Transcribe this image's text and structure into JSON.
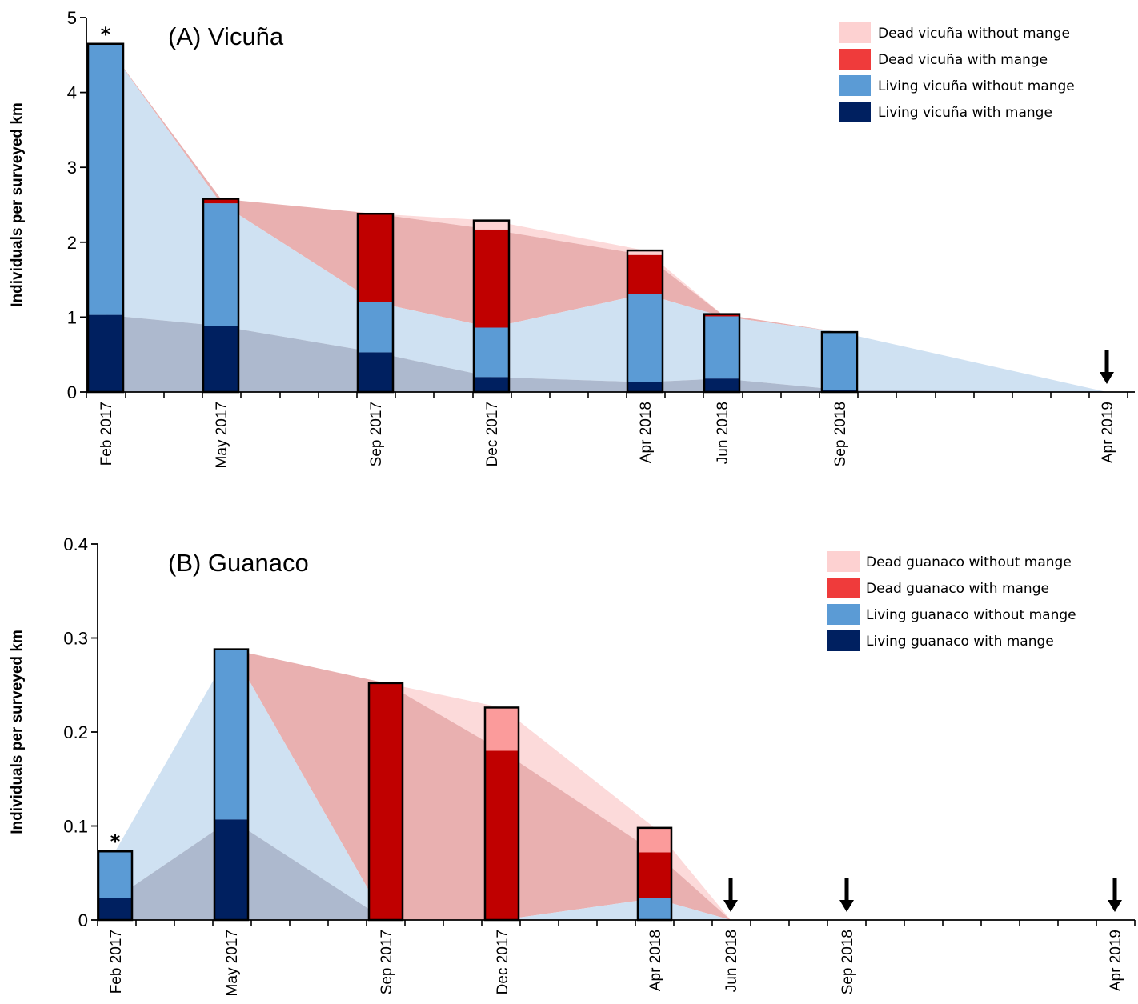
{
  "colors": {
    "dead_without": "#fdd1d1",
    "dead_with_legend": "#ef3b3b",
    "dead_with_bar": "#c00000",
    "dead_without_bar_panelB": "#fb9b9b",
    "living_without": "#5b9bd5",
    "living_with": "#002060",
    "area_light_blue": "#cfe1f2",
    "area_grey_blue": "#adb9ce",
    "area_red": "#e9b0b0",
    "area_pink": "#fcdada"
  },
  "chart_data": [
    {
      "type": "bar",
      "stacked": true,
      "title": "(A) Vicuña",
      "ylabel": "Individuals per surveyed km",
      "ylim": [
        0,
        5
      ],
      "yticks": [
        "0",
        "1",
        "2",
        "3",
        "4",
        "5"
      ],
      "categories": [
        "Feb 2017",
        "May 2017",
        "Sep 2017",
        "Dec 2017",
        "Apr 2018",
        "Jun 2018",
        "Sep 2018",
        "Apr 2019"
      ],
      "series": [
        {
          "name": "Living vicuña with mange",
          "values": [
            1.03,
            0.88,
            0.53,
            0.2,
            0.13,
            0.18,
            0.03,
            0
          ]
        },
        {
          "name": "Living vicuña without mange",
          "values": [
            3.62,
            1.64,
            0.67,
            0.66,
            1.18,
            0.83,
            0.77,
            0
          ]
        },
        {
          "name": "Dead vicuña with mange",
          "values": [
            0,
            0.06,
            1.18,
            1.31,
            0.52,
            0.03,
            0,
            0
          ]
        },
        {
          "name": "Dead vicuña without mange",
          "values": [
            0,
            0,
            0,
            0.12,
            0.06,
            0,
            0,
            0
          ]
        }
      ],
      "annotations": [
        "*"
      ],
      "legend_position": "top-right",
      "arrow_categories": [
        "Apr 2019"
      ]
    },
    {
      "type": "bar",
      "stacked": true,
      "title": "(B) Guanaco",
      "ylabel": "Individuals per surveyed km",
      "ylim": [
        0,
        0.4
      ],
      "yticks": [
        "0",
        "0.1",
        "0.2",
        "0.3",
        "0.4"
      ],
      "categories": [
        "Feb 2017",
        "May 2017",
        "Sep 2017",
        "Dec 2017",
        "Apr 2018",
        "Jun 2018",
        "Sep 2018",
        "Apr 2019"
      ],
      "series": [
        {
          "name": "Living guanaco with mange",
          "values": [
            0.023,
            0.107,
            0,
            0,
            0,
            0,
            0,
            0
          ]
        },
        {
          "name": "Living guanaco without mange",
          "values": [
            0.05,
            0.181,
            0,
            0,
            0.023,
            0,
            0,
            0
          ]
        },
        {
          "name": "Dead guanaco with mange",
          "values": [
            0,
            0,
            0.252,
            0.18,
            0.049,
            0,
            0,
            0
          ]
        },
        {
          "name": "Dead guanaco without mange",
          "values": [
            0,
            0,
            0,
            0.046,
            0.026,
            0,
            0,
            0
          ]
        }
      ],
      "annotations": [
        "*"
      ],
      "legend_position": "top-right",
      "arrow_categories": [
        "Jun 2018",
        "Sep 2018",
        "Apr 2019"
      ]
    }
  ]
}
